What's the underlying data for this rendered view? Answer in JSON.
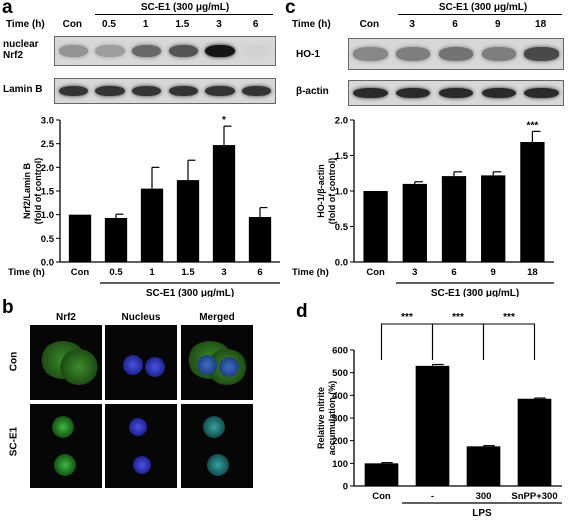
{
  "panel_a": {
    "letter": "a",
    "time_label": "Time (h)",
    "treatment": "SC-E1 (300 μg/mL)",
    "times": [
      "Con",
      "0.5",
      "1",
      "1.5",
      "3",
      "6"
    ],
    "blots": [
      {
        "label": "nuclear Nrf2",
        "intensities": [
          0.35,
          0.3,
          0.55,
          0.65,
          0.95,
          0.05
        ]
      },
      {
        "label": "Lamin B",
        "intensities": [
          0.8,
          0.8,
          0.8,
          0.8,
          0.8,
          0.8
        ]
      }
    ]
  },
  "panel_c": {
    "letter": "c",
    "time_label": "Time (h)",
    "treatment": "SC-E1 (300 μg/mL)",
    "times": [
      "Con",
      "3",
      "6",
      "9",
      "18"
    ],
    "blots": [
      {
        "label": "HO-1",
        "intensities": [
          0.4,
          0.45,
          0.5,
          0.45,
          0.7
        ]
      },
      {
        "label": "β-actin",
        "intensities": [
          0.85,
          0.85,
          0.85,
          0.85,
          0.85
        ]
      }
    ]
  },
  "panel_b": {
    "letter": "b",
    "columns": [
      "Nrf2",
      "Nucleus",
      "Merged"
    ],
    "rows": [
      "Con",
      "SC-E1"
    ]
  },
  "panel_d": {
    "letter": "d"
  },
  "chart_data": [
    {
      "type": "bar",
      "categories": [
        "Con",
        "0.5",
        "1",
        "1.5",
        "3",
        "6"
      ],
      "values": [
        1.0,
        0.93,
        1.55,
        1.73,
        2.47,
        0.95
      ],
      "errors": [
        0,
        0.08,
        0.45,
        0.42,
        0.4,
        0.2
      ],
      "annotations": [
        "",
        "",
        "",
        "",
        "*",
        ""
      ],
      "ylabel": "Nrf2/Lamin B\n(fold of control)",
      "xlabel_prefix": "Time (h)",
      "group_label": "SC-E1 (300 μg/mL)",
      "ylim": [
        0,
        3.0
      ],
      "yticks": [
        "0.0",
        "0.5",
        "1.0",
        "1.5",
        "2.0",
        "2.5",
        "3.0"
      ]
    },
    {
      "type": "bar",
      "categories": [
        "Con",
        "3",
        "6",
        "9",
        "18"
      ],
      "values": [
        1.0,
        1.1,
        1.21,
        1.22,
        1.69
      ],
      "errors": [
        0,
        0.03,
        0.06,
        0.05,
        0.15
      ],
      "annotations": [
        "",
        "",
        "",
        "",
        "***"
      ],
      "ylabel": "HO-1/β-actin\n(fold of control)",
      "xlabel_prefix": "Time (h)",
      "group_label": "SC-E1 (300 μg/mL)",
      "ylim": [
        0,
        2.0
      ],
      "yticks": [
        "0.0",
        "0.5",
        "1.0",
        "1.5",
        "2.0"
      ]
    },
    {
      "type": "bar",
      "categories": [
        "Con",
        "-",
        "300",
        "SnPP+300"
      ],
      "values": [
        100,
        530,
        175,
        385
      ],
      "errors": [
        3,
        6,
        3,
        3
      ],
      "ylabel": "Relative nitrite\naccumulation (%)",
      "group_label": "LPS",
      "ylim": [
        0,
        600
      ],
      "yticks": [
        "0",
        "100",
        "200",
        "300",
        "400",
        "500",
        "600"
      ],
      "brackets": [
        {
          "from": 0,
          "to": 1,
          "label": "***"
        },
        {
          "from": 1,
          "to": 2,
          "label": "***"
        },
        {
          "from": 2,
          "to": 3,
          "label": "***"
        }
      ]
    }
  ]
}
